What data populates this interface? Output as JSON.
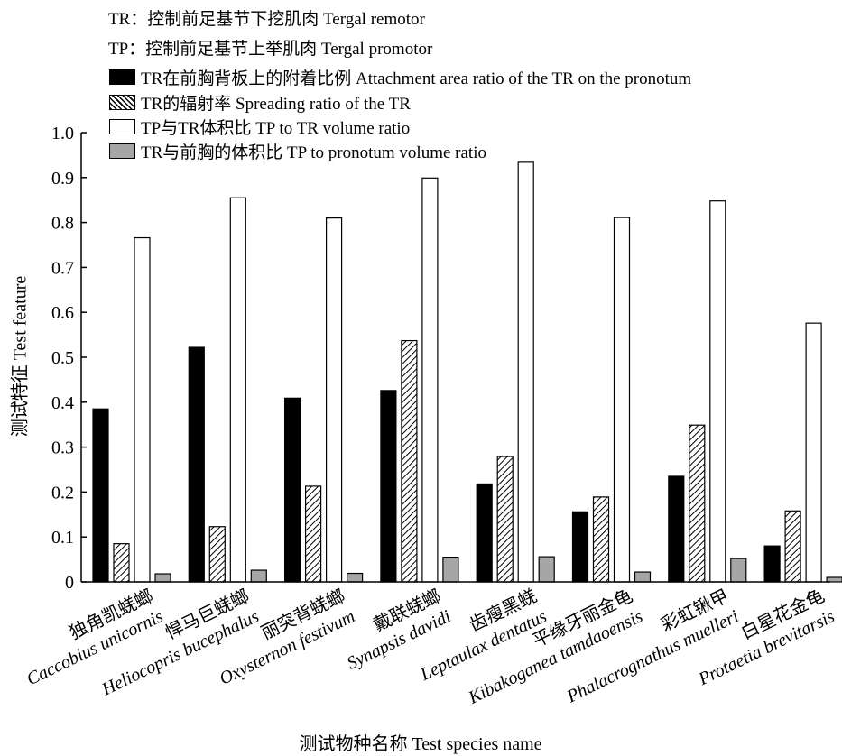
{
  "notes": [
    "TR：控制前足基节下挖肌肉 Tergal remotor",
    "TP：控制前足基节上举肌肉 Tergal promotor"
  ],
  "chart_data": {
    "type": "bar",
    "xlabel": "测试物种名称 Test species name",
    "ylabel": "测试特征 Test feature",
    "ylim": [
      0,
      1.0
    ],
    "yticks": [
      "0",
      "0.1",
      "0.2",
      "0.3",
      "0.4",
      "0.5",
      "0.6",
      "0.7",
      "0.8",
      "0.9",
      "1.0"
    ],
    "grid": false,
    "legend_position": "top-left",
    "categories": [
      {
        "cn": "独角凯蜣螂",
        "latin": "Caccobius unicornis"
      },
      {
        "cn": "悍马巨蜣螂",
        "latin": "Heliocopris bucephalus"
      },
      {
        "cn": "丽突背蜣螂",
        "latin": "Oxysternon festivum"
      },
      {
        "cn": "戴联蜣螂",
        "latin": "Synapsis davidi"
      },
      {
        "cn": "齿瘦黑蜣",
        "latin": "Leptaulax dentatus"
      },
      {
        "cn": "平缘牙丽金龟",
        "latin": "Kibakoganea tamdaoensis"
      },
      {
        "cn": "彩虹锹甲",
        "latin": "Phalacrognathus muelleri"
      },
      {
        "cn": "白星花金龟",
        "latin": "Protaetia brevitarsis"
      }
    ],
    "series": [
      {
        "name": "TR在前胸背板上的附着比例 Attachment area ratio of the TR on the pronotum",
        "style": "solid-black",
        "color": "#000000",
        "values": [
          0.385,
          0.522,
          0.409,
          0.426,
          0.218,
          0.156,
          0.235,
          0.08
        ]
      },
      {
        "name": "TR的辐射率 Spreading ratio of the TR",
        "style": "hatched",
        "color": "#000000",
        "values": [
          0.085,
          0.123,
          0.213,
          0.537,
          0.279,
          0.189,
          0.349,
          0.158
        ]
      },
      {
        "name": "TP与TR体积比 TP to TR volume ratio",
        "style": "white",
        "color": "#ffffff",
        "values": [
          0.766,
          0.855,
          0.81,
          0.899,
          0.934,
          0.811,
          0.848,
          0.576
        ]
      },
      {
        "name": "TR与前胸的体积比 TP to pronotum volume ratio",
        "style": "gray",
        "color": "#a6a6a6",
        "values": [
          0.018,
          0.026,
          0.019,
          0.055,
          0.056,
          0.022,
          0.052,
          0.01
        ]
      }
    ]
  }
}
